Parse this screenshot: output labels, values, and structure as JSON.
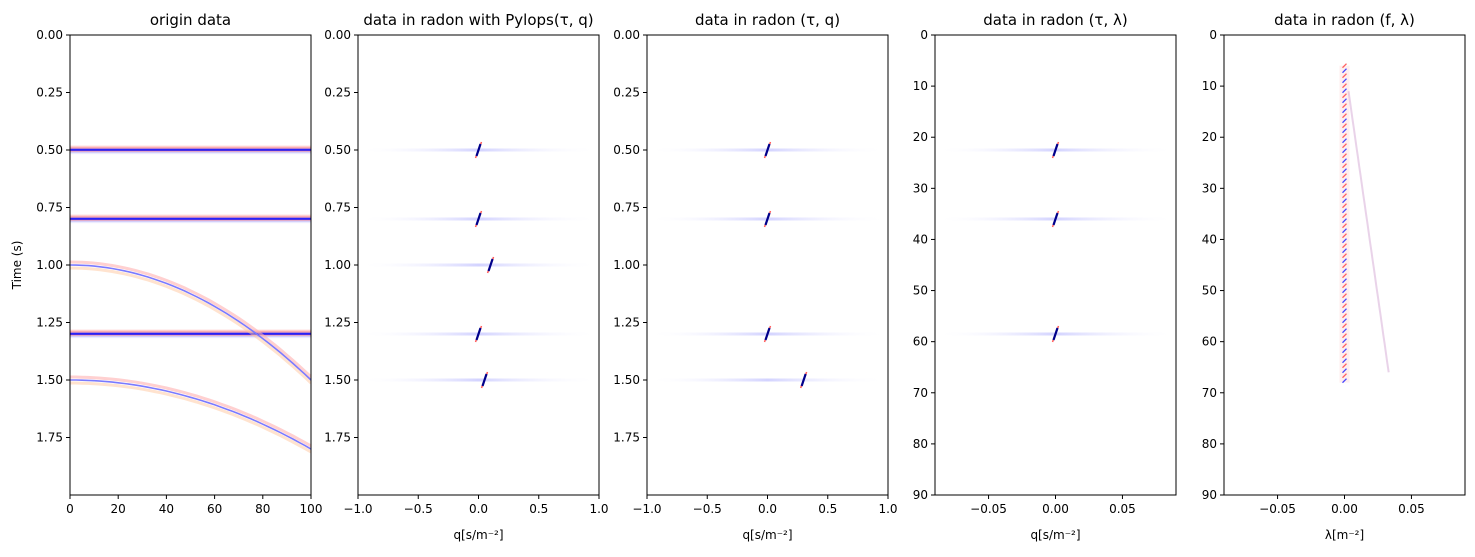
{
  "chart_data": [
    {
      "type": "heatmap",
      "title": "origin data",
      "xlabel": "",
      "ylabel": "Time (s)",
      "xlim": [
        0,
        100
      ],
      "ylim": [
        2.0,
        0.0
      ],
      "xticks": [
        "0",
        "20",
        "40",
        "60",
        "80",
        "100"
      ],
      "yticks": [
        "0.00",
        "0.25",
        "0.50",
        "0.75",
        "1.00",
        "1.25",
        "1.50",
        "1.75"
      ],
      "colormap": "seismic",
      "events": [
        {
          "kind": "flat",
          "t0": 0.5
        },
        {
          "kind": "flat",
          "t0": 0.8
        },
        {
          "kind": "flat",
          "t0": 1.3
        },
        {
          "kind": "curve",
          "t0": 1.0,
          "t_end": 1.5
        },
        {
          "kind": "curve",
          "t0": 1.5,
          "t_end": 1.8
        }
      ]
    },
    {
      "type": "heatmap",
      "title": "data in radon with Pylops(τ, q)",
      "xlabel": "q[s/m⁻²]",
      "ylabel": "",
      "xlim": [
        -1.0,
        1.0
      ],
      "ylim": [
        2.0,
        0.0
      ],
      "xticks": [
        "−1.0",
        "−0.5",
        "0.0",
        "0.5",
        "1.0"
      ],
      "yticks": [
        "0.00",
        "0.25",
        "0.50",
        "0.75",
        "1.00",
        "1.25",
        "1.50",
        "1.75"
      ],
      "colormap": "seismic",
      "points": [
        {
          "x": 0.0,
          "y": 0.5
        },
        {
          "x": 0.0,
          "y": 0.8
        },
        {
          "x": 0.1,
          "y": 1.0
        },
        {
          "x": 0.0,
          "y": 1.3
        },
        {
          "x": 0.05,
          "y": 1.5
        }
      ]
    },
    {
      "type": "heatmap",
      "title": "data in radon (τ, q)",
      "xlabel": "q[s/m⁻²]",
      "ylabel": "",
      "xlim": [
        -1.0,
        1.0
      ],
      "ylim": [
        2.0,
        0.0
      ],
      "xticks": [
        "−1.0",
        "−0.5",
        "0.0",
        "0.5",
        "1.0"
      ],
      "yticks": [
        "0.00",
        "0.25",
        "0.50",
        "0.75",
        "1.00",
        "1.25",
        "1.50",
        "1.75"
      ],
      "colormap": "seismic",
      "points": [
        {
          "x": 0.0,
          "y": 0.5
        },
        {
          "x": 0.0,
          "y": 0.8
        },
        {
          "x": 0.0,
          "y": 1.3
        },
        {
          "x": 0.3,
          "y": 1.5
        }
      ]
    },
    {
      "type": "heatmap",
      "title": "data in radon (τ, λ)",
      "xlabel": "q[s/m⁻²]",
      "ylabel": "",
      "xlim": [
        -0.09,
        0.09
      ],
      "ylim": [
        90,
        0
      ],
      "xticks": [
        "−0.05",
        "0.00",
        "0.05"
      ],
      "yticks": [
        "0",
        "10",
        "20",
        "30",
        "40",
        "50",
        "60",
        "70",
        "80",
        "90"
      ],
      "colormap": "seismic",
      "points": [
        {
          "x": 0.0,
          "y": 22.5
        },
        {
          "x": 0.0,
          "y": 36
        },
        {
          "x": 0.0,
          "y": 58.5
        }
      ]
    },
    {
      "type": "heatmap",
      "title": "data in radon (f, λ)",
      "xlabel": "λ[m⁻²]",
      "ylabel": "",
      "xlim": [
        -0.09,
        0.09
      ],
      "ylim": [
        90,
        0
      ],
      "xticks": [
        "−0.05",
        "0.00",
        "0.05"
      ],
      "yticks": [
        "0",
        "10",
        "20",
        "30",
        "40",
        "50",
        "60",
        "70",
        "80",
        "90"
      ],
      "colormap": "seismic",
      "stripe": {
        "x": 0.0,
        "y_from": 6,
        "y_to": 68
      }
    }
  ]
}
